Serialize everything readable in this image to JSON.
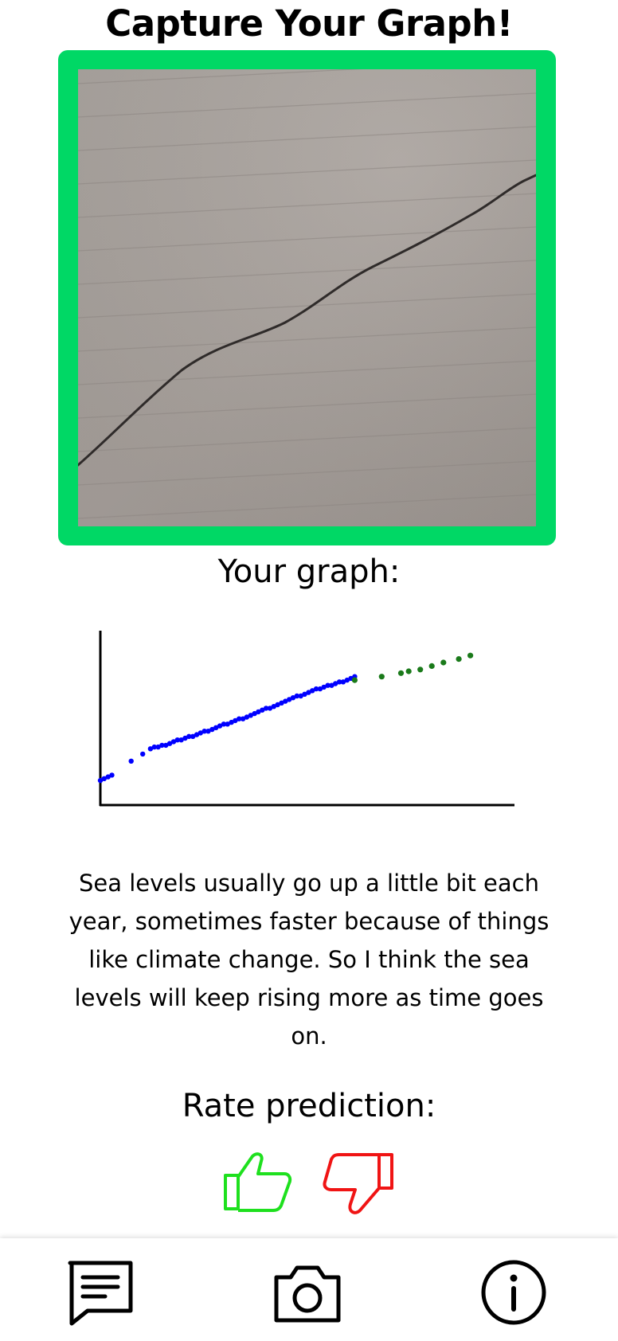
{
  "header": {
    "title": "Capture Your Graph!"
  },
  "graph_section": {
    "label": "Your graph:"
  },
  "chart_data": {
    "type": "scatter",
    "title": "",
    "xlabel": "",
    "ylabel": "",
    "xlim": [
      0,
      100
    ],
    "ylim": [
      0,
      100
    ],
    "series": [
      {
        "color": "#0000ff",
        "x": [
          0,
          1,
          2,
          3,
          8,
          11,
          13,
          14,
          15,
          16,
          17,
          18,
          19,
          20,
          21,
          22,
          23,
          24,
          25,
          26,
          27,
          28,
          29,
          30,
          31,
          32,
          33,
          34,
          35,
          36,
          37,
          38,
          39,
          40,
          41,
          42,
          43,
          44,
          45,
          46,
          47,
          48,
          49,
          50,
          51,
          52,
          53,
          54,
          55,
          56,
          57,
          58,
          59,
          60,
          61,
          62,
          63,
          64,
          65,
          66
        ],
        "y": [
          14,
          15,
          16,
          17,
          25,
          29,
          32,
          33,
          33,
          34,
          34,
          35,
          36,
          37,
          37,
          38,
          39,
          39,
          40,
          41,
          42,
          42,
          43,
          44,
          45,
          46,
          46,
          47,
          48,
          49,
          49,
          50,
          51,
          52,
          53,
          54,
          55,
          55,
          56,
          57,
          58,
          59,
          60,
          61,
          62,
          62,
          63,
          64,
          65,
          66,
          66,
          67,
          68,
          68,
          69,
          70,
          70,
          71,
          72,
          73
        ]
      },
      {
        "color": "#1a7a1a",
        "x": [
          66,
          73,
          78,
          80,
          83,
          86,
          89,
          93,
          96
        ],
        "y": [
          71,
          73,
          75,
          76,
          77,
          79,
          81,
          83,
          85
        ]
      }
    ]
  },
  "prediction": {
    "text": "Sea levels usually go up a little bit each year, sometimes faster because of things like climate change. So I think the sea levels will keep rising more as time goes on."
  },
  "rating": {
    "label": "Rate prediction:",
    "up_icon": "thumbs-up-icon",
    "down_icon": "thumbs-down-icon",
    "up_color": "#1ee01e",
    "down_color": "#f01414"
  },
  "bottom_nav": {
    "items": [
      {
        "icon": "message-icon"
      },
      {
        "icon": "camera-icon"
      },
      {
        "icon": "info-icon"
      }
    ]
  },
  "colors": {
    "frame": "#00d865",
    "paper": "#a9a29d"
  }
}
